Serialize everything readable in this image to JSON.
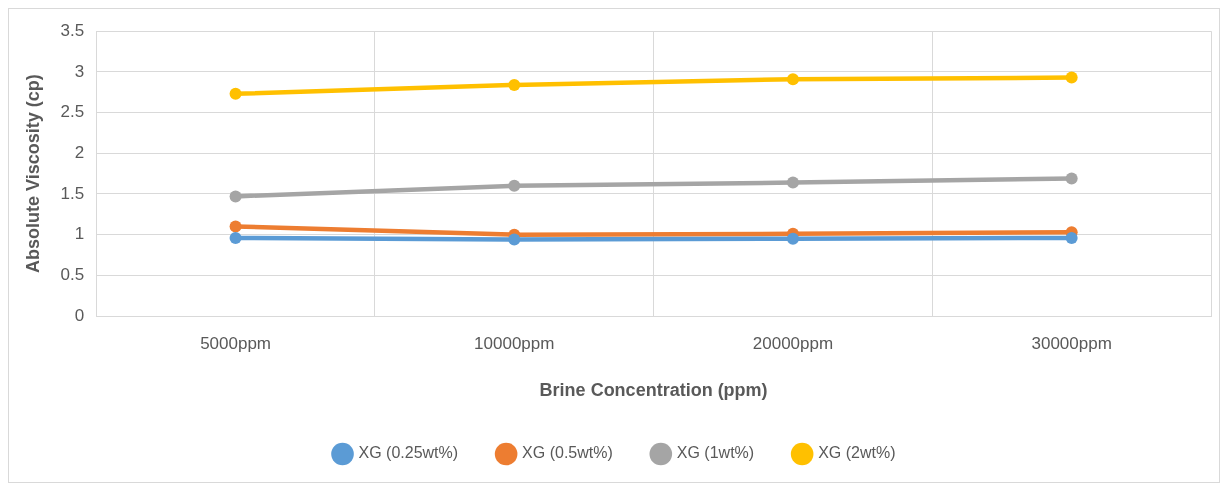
{
  "chart_data": {
    "type": "line",
    "xlabel": "Brine Concentration (ppm)",
    "ylabel": "Absolute Viscosity (cp)",
    "categories": [
      "5000ppm",
      "10000ppm",
      "20000ppm",
      "30000ppm"
    ],
    "series": [
      {
        "name": "XG (0.25wt%)",
        "color": "#5b9bd5",
        "values": [
          0.96,
          0.94,
          0.95,
          0.96
        ]
      },
      {
        "name": "XG (0.5wt%)",
        "color": "#ed7d31",
        "values": [
          1.1,
          1.0,
          1.01,
          1.03
        ]
      },
      {
        "name": "XG (1wt%)",
        "color": "#a5a5a5",
        "values": [
          1.47,
          1.6,
          1.64,
          1.69
        ]
      },
      {
        "name": "XG (2wt%)",
        "color": "#ffc000",
        "values": [
          2.73,
          2.84,
          2.91,
          2.93
        ]
      }
    ],
    "ylim": [
      0,
      3.5
    ],
    "yticks": [
      0,
      0.5,
      1,
      1.5,
      2,
      2.5,
      3,
      3.5
    ],
    "grid": true,
    "legend": "bottom",
    "marker": "circle",
    "line_style": "solid"
  }
}
